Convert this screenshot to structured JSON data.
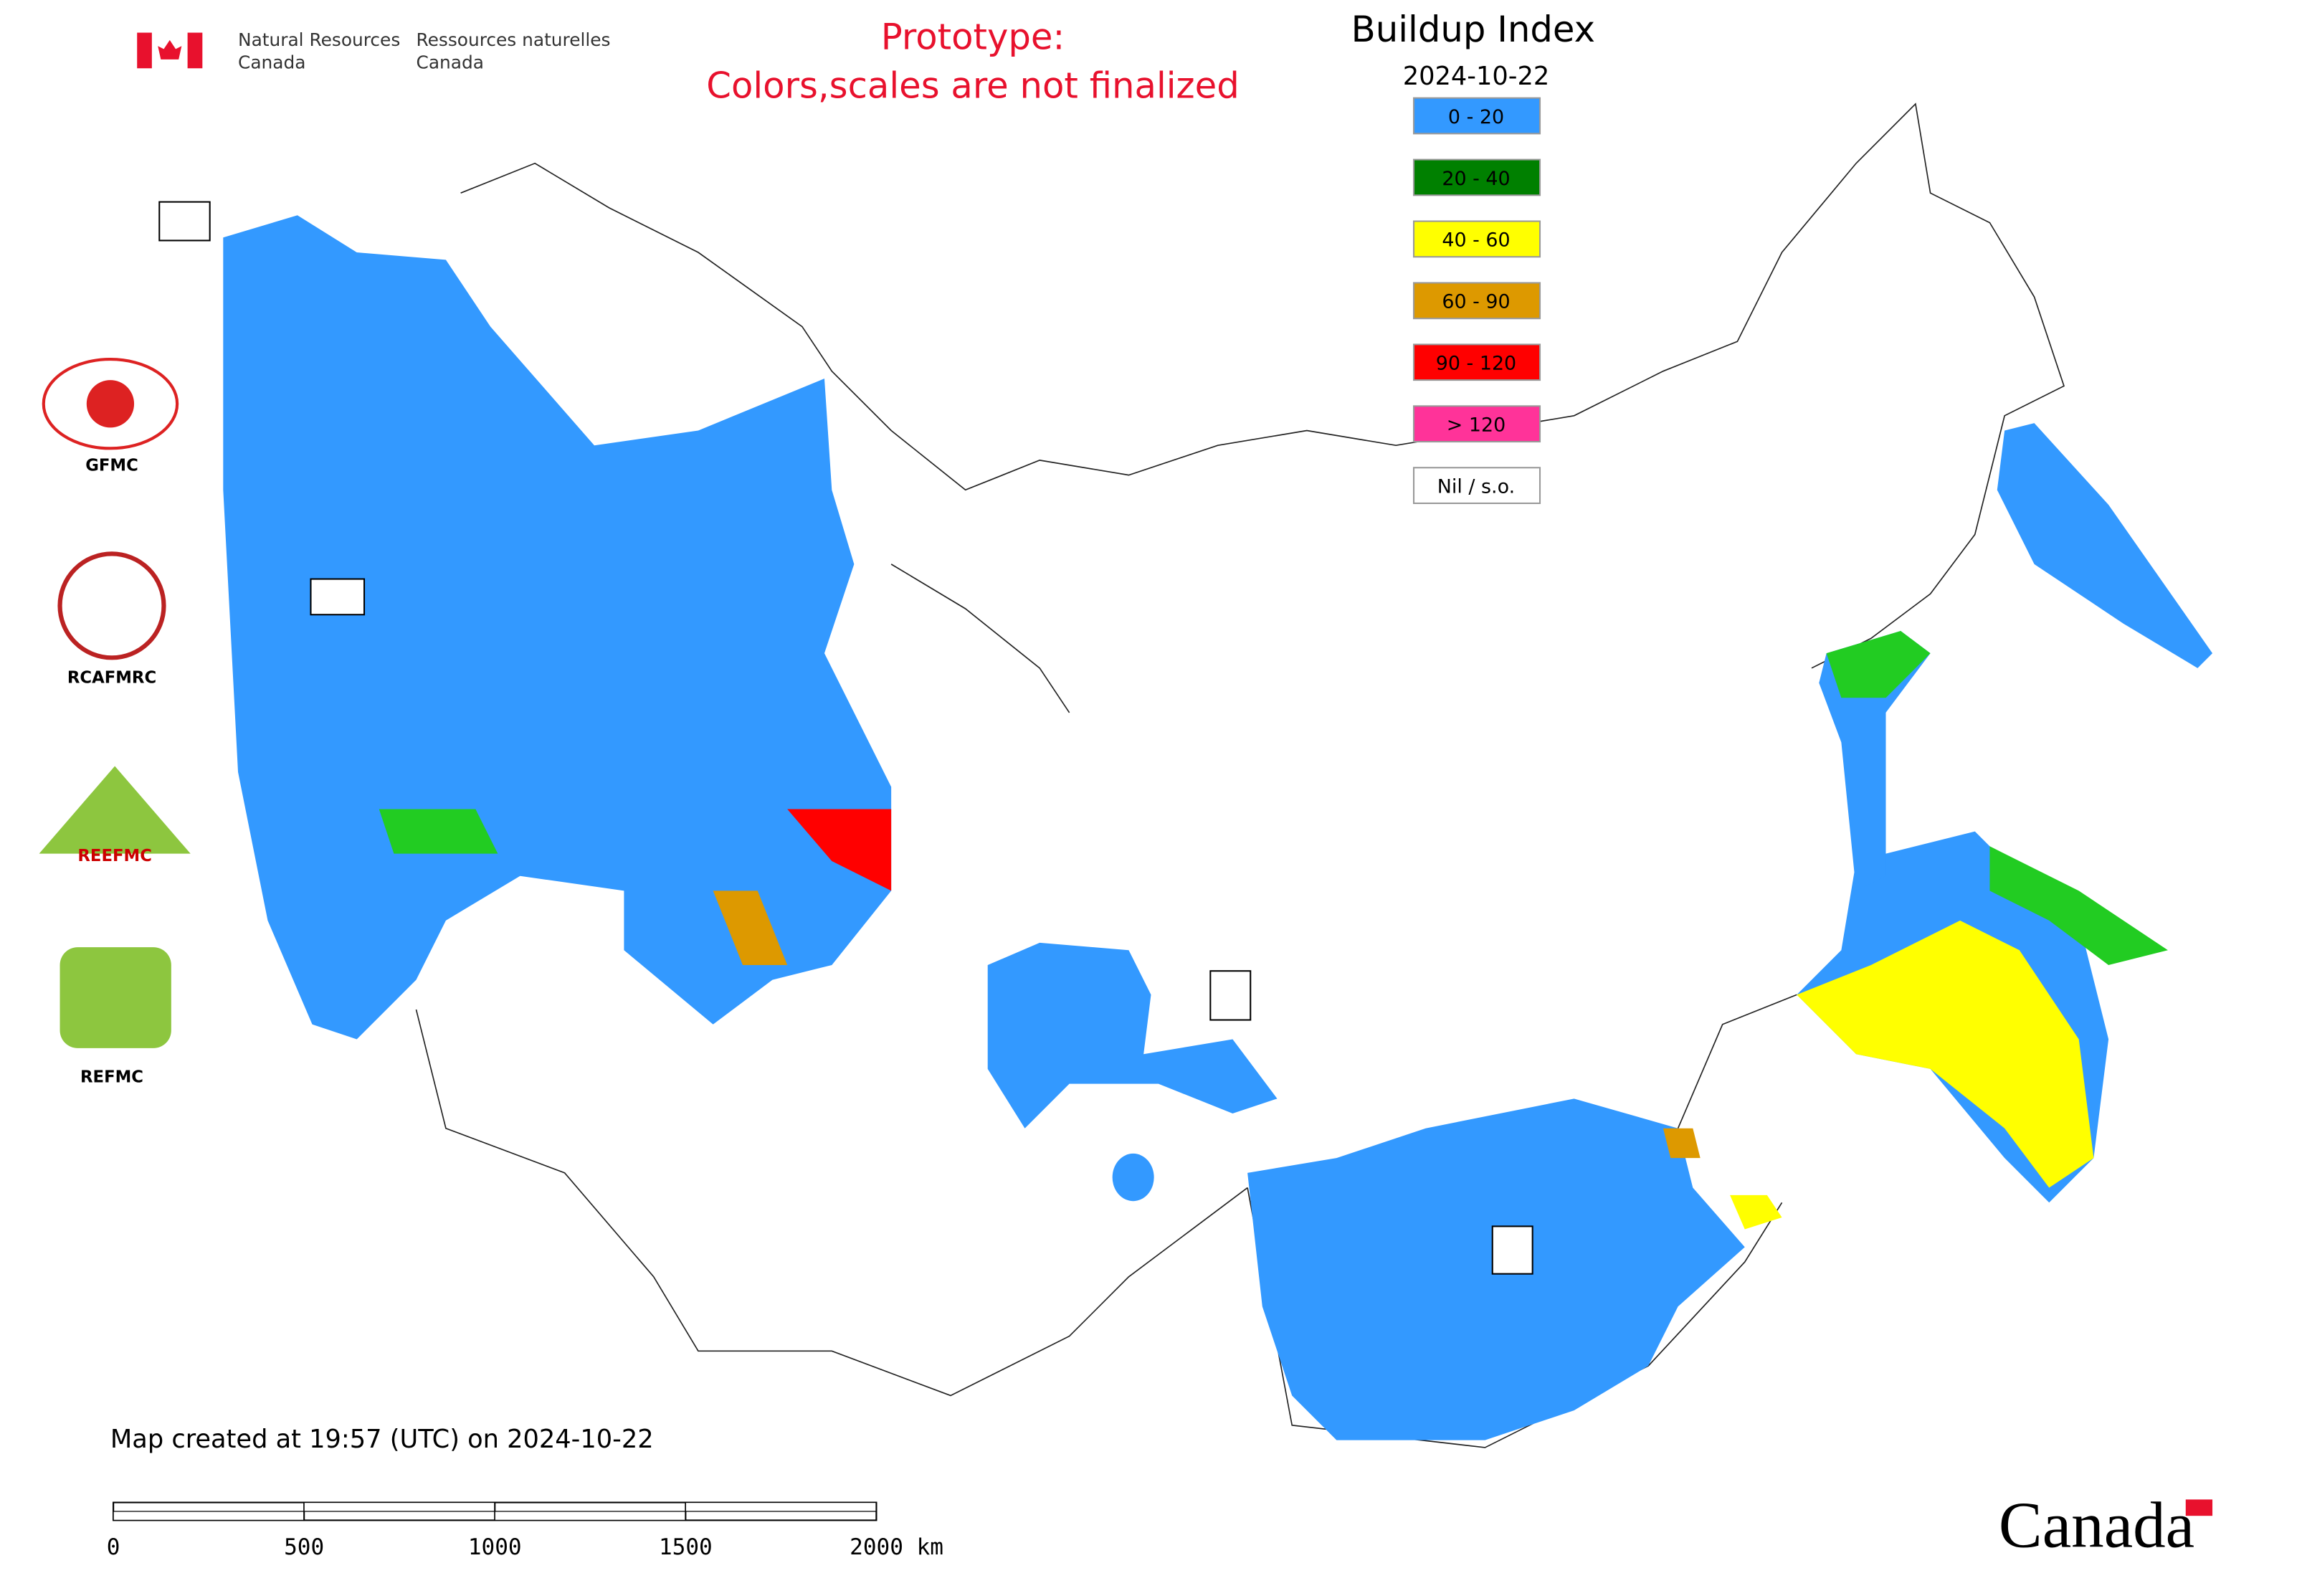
{
  "header": {
    "department_en": [
      "Natural Resources",
      "Canada"
    ],
    "department_fr": [
      "Ressources naturelles",
      "Canada"
    ]
  },
  "notice": [
    "Prototype:",
    "Colors,scales are not finalized"
  ],
  "legend": {
    "title": "Buildup Index",
    "date": "2024-10-22",
    "items": [
      {
        "label": "0 - 20",
        "color": "#3399ff"
      },
      {
        "label": "20 - 40",
        "color": "#008000"
      },
      {
        "label": "40 - 60",
        "color": "#ffff00"
      },
      {
        "label": "60 - 90",
        "color": "#dd9900"
      },
      {
        "label": "90 - 120",
        "color": "#ff0000"
      },
      {
        "label": "> 120",
        "color": "#ff3399"
      },
      {
        "label": "Nil / s.o.",
        "color": "#ffffff"
      }
    ]
  },
  "logos": [
    "GFMC",
    "RCAFMRC",
    "REEFMC",
    "REFMC"
  ],
  "footer": {
    "created": "Map created at 19:57 (UTC) on 2024-10-22",
    "wordmark": "Canada"
  },
  "scale_bar": {
    "ticks": [
      0,
      500,
      1000,
      1500,
      {
        "value": 2000,
        "label": "2000 km"
      }
    ],
    "range": [
      0,
      2000
    ]
  }
}
